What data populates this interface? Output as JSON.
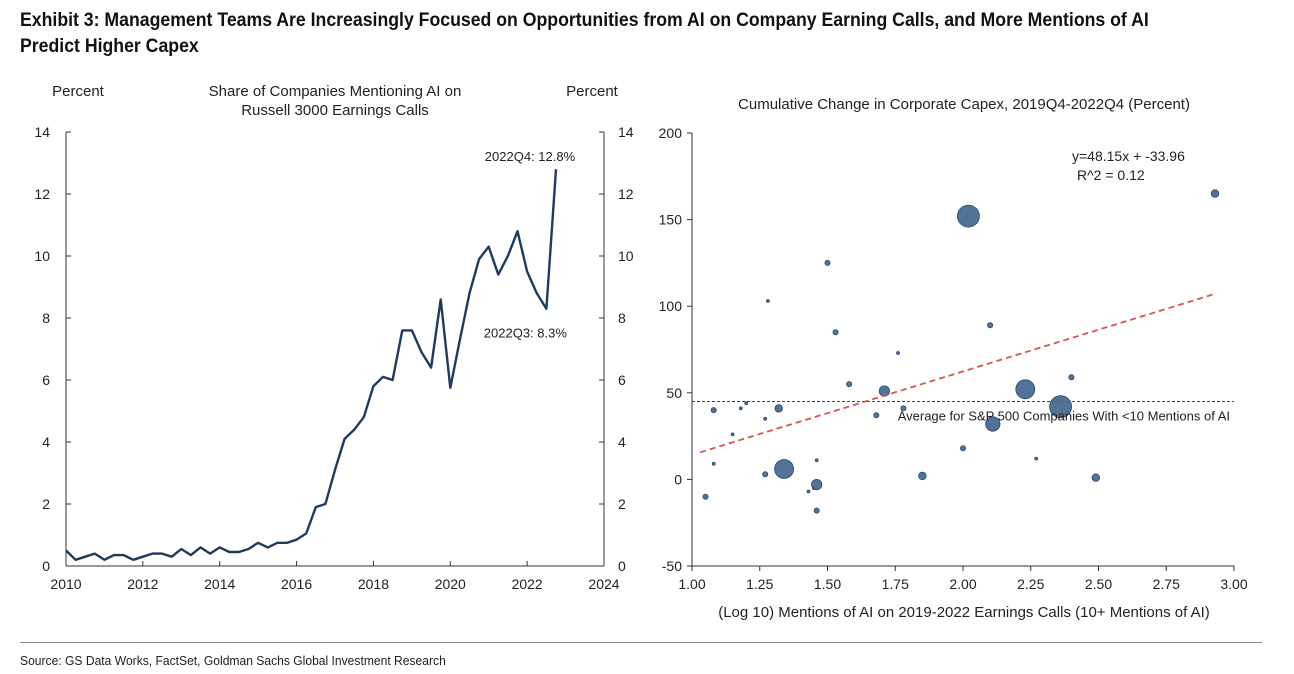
{
  "title": "Exhibit 3: Management Teams Are Increasingly Focused on Opportunities from AI on Company Earning Calls, and More Mentions of AI Predict Higher Capex",
  "source": "Source: GS Data Works, FactSet, Goldman Sachs Global Investment Research",
  "colors": {
    "line": "#1f3b5c",
    "bubble": "#4a6a91",
    "bubble_edge": "#2c4a70",
    "trend": "#d9534f",
    "avg_line": "#444444"
  },
  "chart_data": [
    {
      "type": "line",
      "title": "Share of Companies Mentioning AI on Russell 3000 Earnings Calls",
      "title_lines": [
        "Share of Companies Mentioning AI on",
        "Russell 3000 Earnings Calls"
      ],
      "ylabel_left": "Percent",
      "ylabel_right": "Percent",
      "xlim": [
        2010,
        2024
      ],
      "ylim": [
        0,
        14
      ],
      "x_ticks": [
        2010,
        2012,
        2014,
        2016,
        2018,
        2020,
        2022,
        2024
      ],
      "y_ticks": [
        0,
        2,
        4,
        6,
        8,
        10,
        12,
        14
      ],
      "series": [
        {
          "x": [
            2010.0,
            2010.25,
            2010.5,
            2010.75,
            2011.0,
            2011.25,
            2011.5,
            2011.75,
            2012.0,
            2012.25,
            2012.5,
            2012.75,
            2013.0,
            2013.25,
            2013.5,
            2013.75,
            2014.0,
            2014.25,
            2014.5,
            2014.75,
            2015.0,
            2015.25,
            2015.5,
            2015.75,
            2016.0,
            2016.25,
            2016.5,
            2016.75,
            2017.0,
            2017.25,
            2017.5,
            2017.75,
            2018.0,
            2018.25,
            2018.5,
            2018.75,
            2019.0,
            2019.25,
            2019.5,
            2019.75,
            2020.0,
            2020.25,
            2020.5,
            2020.75,
            2021.0,
            2021.25,
            2021.5,
            2021.75,
            2022.0,
            2022.25,
            2022.5,
            2022.75
          ],
          "y": [
            0.5,
            0.2,
            0.3,
            0.4,
            0.2,
            0.35,
            0.35,
            0.2,
            0.3,
            0.4,
            0.4,
            0.3,
            0.55,
            0.35,
            0.6,
            0.4,
            0.6,
            0.45,
            0.45,
            0.55,
            0.75,
            0.6,
            0.75,
            0.75,
            0.85,
            1.05,
            1.9,
            2.0,
            3.1,
            4.1,
            4.4,
            4.8,
            5.8,
            6.1,
            6.0,
            7.6,
            7.6,
            6.9,
            6.4,
            8.6,
            5.75,
            7.3,
            8.8,
            9.9,
            10.3,
            9.4,
            10.0,
            10.8,
            9.5,
            8.8,
            8.3,
            12.8
          ]
        }
      ],
      "annotations": [
        {
          "text": "2022Q4: 12.8%",
          "x": 2022.75,
          "y": 12.8
        },
        {
          "text": "2022Q3: 8.3%",
          "x": 2022.5,
          "y": 8.3
        }
      ]
    },
    {
      "type": "scatter",
      "title": "Cumulative Change in Corporate Capex, 2019Q4-2022Q4 (Percent)",
      "xlabel": "(Log 10) Mentions of AI on 2019-2022 Earnings Calls (10+ Mentions of AI)",
      "xlim": [
        1.0,
        3.0
      ],
      "ylim": [
        -50,
        200
      ],
      "x_ticks": [
        1.0,
        1.25,
        1.5,
        1.75,
        2.0,
        2.25,
        2.5,
        2.75,
        3.0
      ],
      "x_tick_labels": [
        "1.00",
        "1.25",
        "1.50",
        "1.75",
        "2.00",
        "2.25",
        "2.50",
        "2.75",
        "3.00"
      ],
      "y_ticks": [
        -50,
        0,
        50,
        100,
        150,
        200
      ],
      "points": [
        {
          "x": 1.05,
          "y": -10,
          "size": 2
        },
        {
          "x": 1.08,
          "y": 40,
          "size": 2
        },
        {
          "x": 1.08,
          "y": 9,
          "size": 1
        },
        {
          "x": 1.15,
          "y": 26,
          "size": 1
        },
        {
          "x": 1.18,
          "y": 41,
          "size": 1
        },
        {
          "x": 1.2,
          "y": 44,
          "size": 1
        },
        {
          "x": 1.27,
          "y": 3,
          "size": 2
        },
        {
          "x": 1.27,
          "y": 35,
          "size": 1
        },
        {
          "x": 1.28,
          "y": 103,
          "size": 1
        },
        {
          "x": 1.32,
          "y": 41,
          "size": 3
        },
        {
          "x": 1.34,
          "y": 6,
          "size": 6
        },
        {
          "x": 1.43,
          "y": -7,
          "size": 1
        },
        {
          "x": 1.45,
          "y": -5,
          "size": 1
        },
        {
          "x": 1.46,
          "y": -3,
          "size": 4
        },
        {
          "x": 1.46,
          "y": 11,
          "size": 1
        },
        {
          "x": 1.46,
          "y": -18,
          "size": 2
        },
        {
          "x": 1.5,
          "y": 125,
          "size": 2
        },
        {
          "x": 1.53,
          "y": 85,
          "size": 2
        },
        {
          "x": 1.58,
          "y": 55,
          "size": 2
        },
        {
          "x": 1.68,
          "y": 37,
          "size": 2
        },
        {
          "x": 1.71,
          "y": 51,
          "size": 4
        },
        {
          "x": 1.76,
          "y": 73,
          "size": 1
        },
        {
          "x": 1.78,
          "y": 41,
          "size": 2
        },
        {
          "x": 1.85,
          "y": 2,
          "size": 3
        },
        {
          "x": 2.0,
          "y": 18,
          "size": 2
        },
        {
          "x": 2.02,
          "y": 152,
          "size": 7
        },
        {
          "x": 2.1,
          "y": 89,
          "size": 2
        },
        {
          "x": 2.11,
          "y": 32,
          "size": 5
        },
        {
          "x": 2.23,
          "y": 52,
          "size": 6
        },
        {
          "x": 2.27,
          "y": 12,
          "size": 1
        },
        {
          "x": 2.36,
          "y": 42,
          "size": 7
        },
        {
          "x": 2.4,
          "y": 59,
          "size": 2
        },
        {
          "x": 2.49,
          "y": 1,
          "size": 3
        },
        {
          "x": 2.93,
          "y": 165,
          "size": 3
        }
      ],
      "trendline": {
        "slope": 48.15,
        "intercept": -33.96,
        "x_range": [
          1.03,
          2.93
        ]
      },
      "equation_text": "y=48.15x + -33.96",
      "r2_text": "R^2 =  0.12",
      "reference_line": {
        "y": 45,
        "label": "Average for S&P 500 Companies With <10 Mentions of AI"
      }
    }
  ]
}
